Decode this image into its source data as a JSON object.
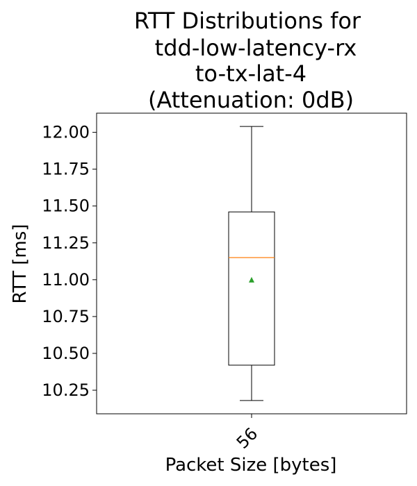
{
  "chart_data": {
    "type": "box",
    "title_lines": [
      "RTT Distributions for",
      "tdd-low-latency-rx",
      "to-tx-lat-4",
      "(Attenuation: 0dB)"
    ],
    "xlabel": "Packet Size [bytes]",
    "ylabel": "RTT [ms]",
    "ylim": [
      10.09,
      12.13
    ],
    "yticks": [
      10.25,
      10.5,
      10.75,
      11.0,
      11.25,
      11.5,
      11.75,
      12.0
    ],
    "ytick_labels": [
      "10.25",
      "10.50",
      "10.75",
      "11.00",
      "11.25",
      "11.50",
      "11.75",
      "12.00"
    ],
    "categories": [
      "56"
    ],
    "boxes": [
      {
        "category": "56",
        "whisker_low": 10.18,
        "q1": 10.42,
        "median": 11.15,
        "q3": 11.46,
        "whisker_high": 12.04,
        "mean": 11.0
      }
    ],
    "grid": false,
    "colors": {
      "box": "#000000",
      "median": "#ff7f0e",
      "mean": "#2ca02c"
    }
  }
}
